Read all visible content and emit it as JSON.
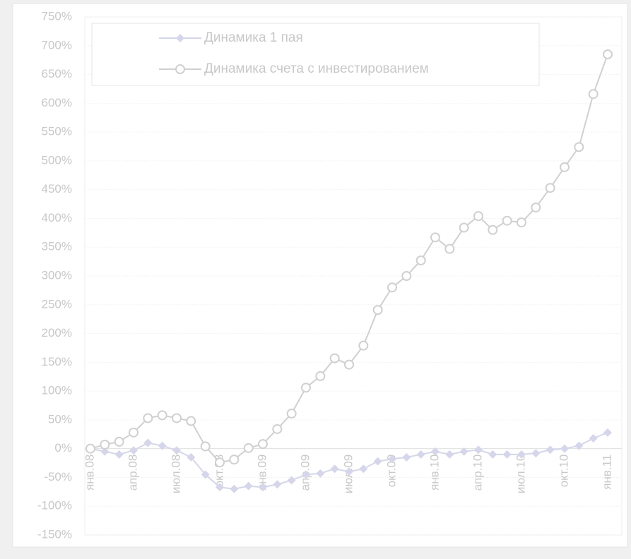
{
  "chart_data": {
    "type": "line",
    "categories": [
      "янв.08",
      null,
      null,
      "апр.08",
      null,
      null,
      "июл.08",
      null,
      null,
      "окт.08",
      null,
      null,
      "янв.09",
      null,
      null,
      "апр.09",
      null,
      null,
      "июл.09",
      null,
      null,
      "окт.09",
      null,
      null,
      "янв.10",
      null,
      null,
      "апр.10",
      null,
      null,
      "июл.10",
      null,
      null,
      "окт.10",
      null,
      null,
      "янв.11"
    ],
    "series": [
      {
        "name": "Динамика 1 пая",
        "color": "#d6d6ea",
        "marker": "diamond",
        "values": [
          0,
          -5,
          -10,
          -3,
          10,
          5,
          -3,
          -15,
          -45,
          -67,
          -70,
          -65,
          -67,
          -62,
          -55,
          -45,
          -43,
          -35,
          -40,
          -35,
          -22,
          -18,
          -15,
          -10,
          -5,
          -10,
          -5,
          -2,
          -10,
          -10,
          -10,
          -8,
          -2,
          0,
          5,
          18,
          28
        ]
      },
      {
        "name": "Динамика счета с инвестированием",
        "color": "#d0d0d0",
        "marker": "circle",
        "values": [
          0,
          7,
          12,
          28,
          53,
          58,
          53,
          48,
          4,
          -24,
          -19,
          1,
          8,
          34,
          61,
          106,
          126,
          157,
          146,
          179,
          241,
          280,
          300,
          327,
          367,
          347,
          384,
          404,
          380,
          396,
          393,
          419,
          453,
          489,
          524,
          616,
          685
        ]
      }
    ],
    "ylim": [
      -150,
      750
    ],
    "yticks": [
      {
        "value": -150,
        "label": "-150%"
      },
      {
        "value": -100,
        "label": "-100%"
      },
      {
        "value": -50,
        "label": "-50%"
      },
      {
        "value": 0,
        "label": "0%"
      },
      {
        "value": 50,
        "label": "50%"
      },
      {
        "value": 100,
        "label": "100%"
      },
      {
        "value": 150,
        "label": "150%"
      },
      {
        "value": 200,
        "label": "200%"
      },
      {
        "value": 250,
        "label": "250%"
      },
      {
        "value": 300,
        "label": "300%"
      },
      {
        "value": 350,
        "label": "350%"
      },
      {
        "value": 400,
        "label": "400%"
      },
      {
        "value": 450,
        "label": "450%"
      },
      {
        "value": 500,
        "label": "500%"
      },
      {
        "value": 550,
        "label": "550%"
      },
      {
        "value": 600,
        "label": "600%"
      },
      {
        "value": 650,
        "label": "650%"
      },
      {
        "value": 700,
        "label": "700%"
      },
      {
        "value": 750,
        "label": "750%"
      }
    ],
    "grid": true,
    "legend": "top"
  }
}
